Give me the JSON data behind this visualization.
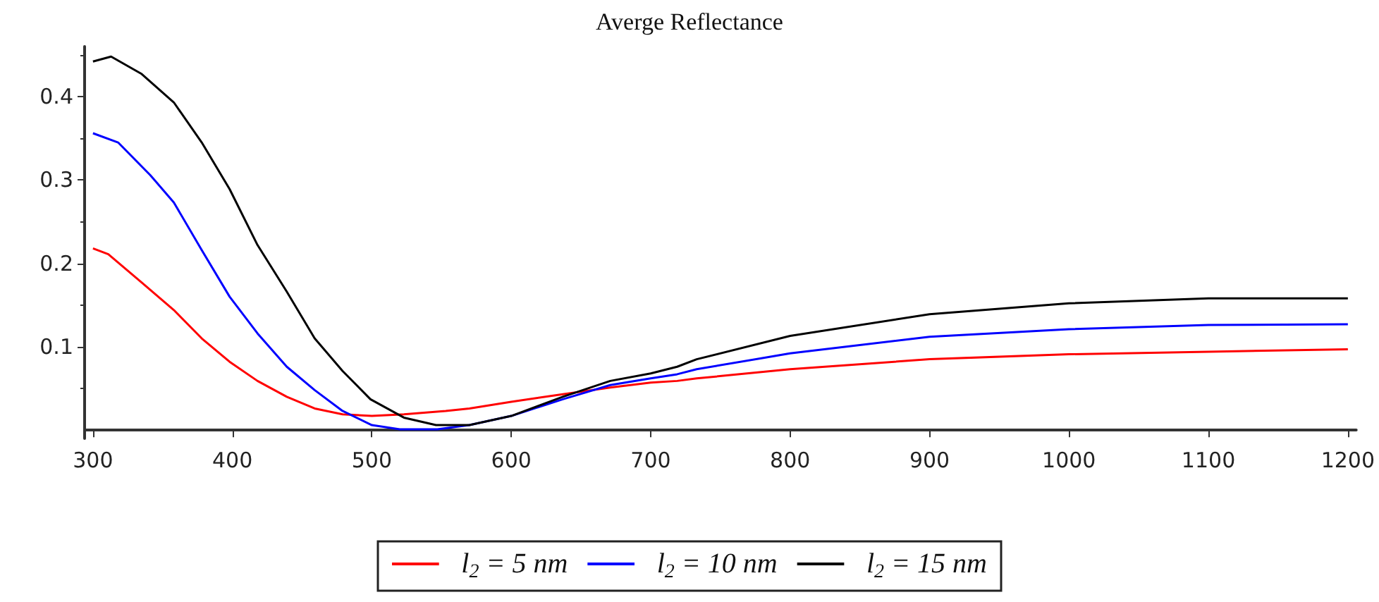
{
  "chart_data": {
    "type": "line",
    "title": "Averge Reflectance",
    "xlim": [
      294,
      1206
    ],
    "xticks": [
      300,
      400,
      500,
      600,
      700,
      800,
      900,
      1000,
      1100,
      1200
    ],
    "ylim": [
      -0.01,
      0.46
    ],
    "yticks": [
      0.1,
      0.2,
      0.3,
      0.4
    ],
    "grid": false,
    "legend": "bottom",
    "marker": "none",
    "line_style": "solid",
    "series": [
      {
        "name": "l$_{2}$ = 5 nm",
        "color": "#ff0000",
        "x": [
          300,
          311,
          335,
          358,
          378,
          398,
          418,
          439,
          459,
          479,
          500,
          523,
          553,
          570,
          600,
          637,
          671,
          700,
          719,
          733,
          800,
          900,
          1000,
          1100,
          1200
        ],
        "values": [
          0.218,
          0.211,
          0.177,
          0.144,
          0.11,
          0.082,
          0.059,
          0.04,
          0.026,
          0.019,
          0.017,
          0.019,
          0.023,
          0.026,
          0.034,
          0.043,
          0.051,
          0.057,
          0.059,
          0.062,
          0.073,
          0.085,
          0.091,
          0.094,
          0.097
        ]
      },
      {
        "name": "l$_{2}$ = 10 nm",
        "color": "#0000ff",
        "x": [
          300,
          318,
          341,
          358,
          378,
          398,
          418,
          439,
          459,
          479,
          500,
          520,
          547,
          570,
          600,
          637,
          671,
          700,
          719,
          733,
          800,
          900,
          1000,
          1100,
          1200
        ],
        "values": [
          0.356,
          0.345,
          0.306,
          0.273,
          0.216,
          0.16,
          0.116,
          0.076,
          0.048,
          0.023,
          0.006,
          0.001,
          0.001,
          0.006,
          0.017,
          0.037,
          0.054,
          0.062,
          0.067,
          0.073,
          0.092,
          0.112,
          0.121,
          0.126,
          0.127
        ]
      },
      {
        "name": "l$_{2}$ = 15 nm",
        "color": "#000000",
        "x": [
          300,
          313,
          335,
          358,
          378,
          398,
          418,
          439,
          459,
          479,
          499,
          523,
          546,
          570,
          600,
          637,
          671,
          700,
          719,
          733,
          800,
          900,
          1000,
          1100,
          1200
        ],
        "values": [
          0.442,
          0.448,
          0.427,
          0.393,
          0.345,
          0.289,
          0.222,
          0.166,
          0.11,
          0.071,
          0.037,
          0.015,
          0.006,
          0.006,
          0.017,
          0.04,
          0.059,
          0.068,
          0.076,
          0.085,
          0.113,
          0.139,
          0.152,
          0.158,
          0.158
        ]
      }
    ]
  }
}
